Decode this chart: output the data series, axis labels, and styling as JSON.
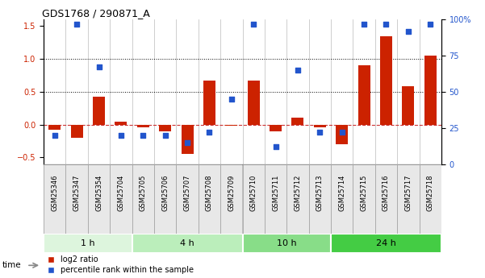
{
  "title": "GDS1768 / 290871_A",
  "categories": [
    "GSM25346",
    "GSM25347",
    "GSM25354",
    "GSM25704",
    "GSM25705",
    "GSM25706",
    "GSM25707",
    "GSM25708",
    "GSM25709",
    "GSM25710",
    "GSM25711",
    "GSM25712",
    "GSM25713",
    "GSM25714",
    "GSM25715",
    "GSM25716",
    "GSM25717",
    "GSM25718"
  ],
  "log2_ratio": [
    -0.08,
    -0.2,
    0.42,
    0.04,
    -0.04,
    -0.1,
    -0.45,
    0.67,
    -0.02,
    0.67,
    -0.1,
    0.1,
    -0.04,
    -0.3,
    0.9,
    1.35,
    0.58,
    1.05
  ],
  "percentile_rank_actual": [
    20,
    97,
    67,
    20,
    20,
    20,
    15,
    22,
    45,
    97,
    12,
    65,
    22,
    22,
    97,
    97,
    92,
    97
  ],
  "groups": [
    {
      "label": "1 h",
      "start": 0,
      "end": 4,
      "color": "#ddf5dd"
    },
    {
      "label": "4 h",
      "start": 4,
      "end": 9,
      "color": "#bbeebb"
    },
    {
      "label": "10 h",
      "start": 9,
      "end": 13,
      "color": "#88dd88"
    },
    {
      "label": "24 h",
      "start": 13,
      "end": 18,
      "color": "#44cc44"
    }
  ],
  "bar_color": "#cc2200",
  "dot_color": "#2255cc",
  "ylim_left": [
    -0.6,
    1.6
  ],
  "ylim_right": [
    0,
    100
  ],
  "yticks_left": [
    -0.5,
    0.0,
    0.5,
    1.0,
    1.5
  ],
  "yticks_right": [
    0,
    25,
    50,
    75,
    100
  ],
  "hlines": [
    0.5,
    1.0
  ],
  "legend_items": [
    "log2 ratio",
    "percentile rank within the sample"
  ],
  "bar_width": 0.55
}
